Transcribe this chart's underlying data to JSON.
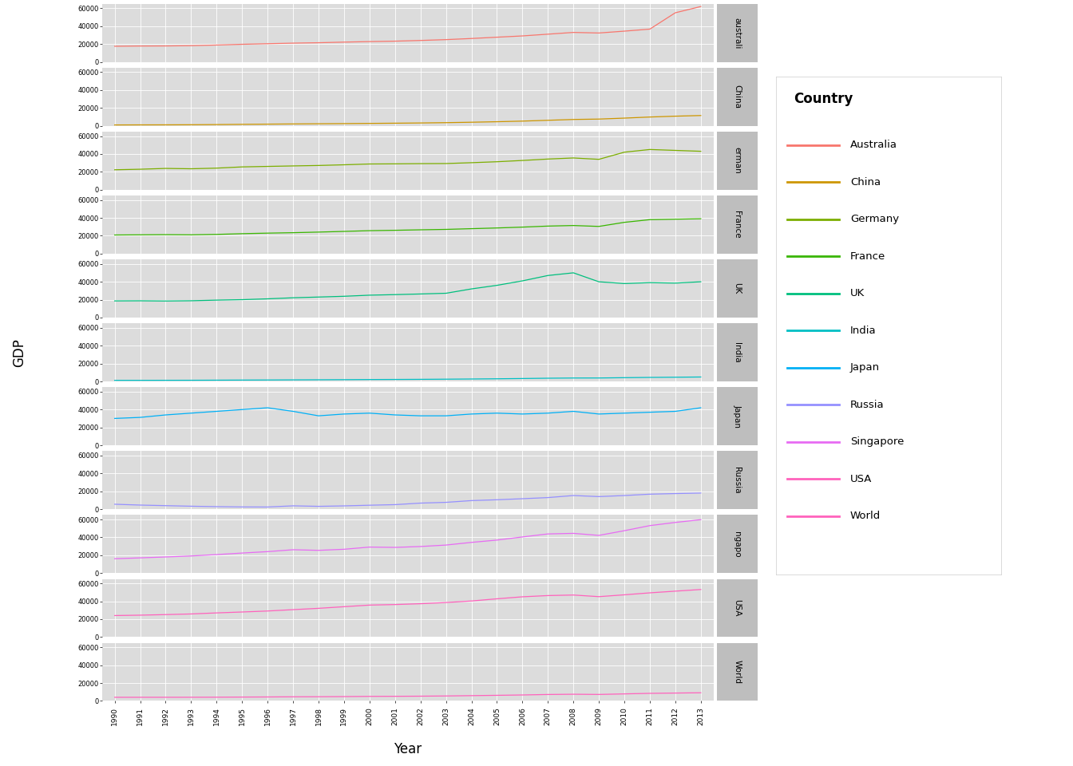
{
  "countries": [
    "Australia",
    "China",
    "Germany",
    "France",
    "UK",
    "India",
    "Japan",
    "Russia",
    "Singapore",
    "USA",
    "World"
  ],
  "facet_labels": [
    "australi",
    "China",
    "erman",
    "France",
    "UK",
    "India",
    "Japan",
    "Russia",
    "ngapo",
    "USA",
    "World"
  ],
  "years": [
    1990,
    1991,
    1992,
    1993,
    1994,
    1995,
    1996,
    1997,
    1998,
    1999,
    2000,
    2001,
    2002,
    2003,
    2004,
    2005,
    2006,
    2007,
    2008,
    2009,
    2010,
    2011,
    2012,
    2013
  ],
  "gdp_data": {
    "Australia": [
      17517,
      17788,
      17887,
      18182,
      18894,
      19721,
      20389,
      21020,
      21468,
      22167,
      22746,
      23228,
      24021,
      24958,
      26214,
      27655,
      29095,
      31048,
      33009,
      32360,
      34435,
      36713,
      55000,
      62000
    ],
    "China": [
      979,
      1056,
      1100,
      1205,
      1394,
      1666,
      1880,
      2093,
      2297,
      2485,
      2700,
      2933,
      3187,
      3532,
      4008,
      4575,
      5272,
      6186,
      7104,
      7546,
      8618,
      9849,
      10785,
      11525
    ],
    "Germany": [
      22317,
      22920,
      23830,
      23448,
      24159,
      25520,
      26078,
      26625,
      27127,
      27889,
      28793,
      28937,
      29180,
      29291,
      30238,
      31304,
      32730,
      34314,
      35537,
      33993,
      42000,
      45000,
      44000,
      43000
    ],
    "France": [
      20838,
      21032,
      21197,
      21019,
      21503,
      22313,
      22906,
      23407,
      24085,
      24855,
      25668,
      26100,
      26636,
      27104,
      27908,
      28700,
      29649,
      30796,
      31438,
      30424,
      35000,
      38000,
      38500,
      39000
    ],
    "UK": [
      18579,
      18698,
      18460,
      18744,
      19461,
      19996,
      20903,
      22072,
      22903,
      23755,
      24993,
      25613,
      26334,
      27131,
      32000,
      36000,
      41000,
      47000,
      50000,
      40000,
      38000,
      39000,
      38500,
      40000
    ],
    "India": [
      1178,
      1200,
      1240,
      1285,
      1393,
      1499,
      1598,
      1725,
      1831,
      1946,
      2095,
      2190,
      2310,
      2487,
      2697,
      2925,
      3230,
      3570,
      3800,
      3830,
      4170,
      4480,
      4680,
      4930
    ],
    "Japan": [
      30065,
      31237,
      34000,
      36000,
      38000,
      40000,
      42000,
      38000,
      33000,
      35000,
      36000,
      34000,
      33000,
      33000,
      35000,
      36000,
      35000,
      36000,
      38000,
      35000,
      36000,
      37000,
      38000,
      42000
    ],
    "Russia": [
      5555,
      4615,
      3985,
      3337,
      2868,
      2527,
      2445,
      3780,
      3200,
      3720,
      4450,
      5100,
      6820,
      7670,
      9630,
      10560,
      11740,
      13000,
      15300,
      14100,
      15300,
      16800,
      17500,
      18100
    ],
    "Singapore": [
      16059,
      17038,
      18082,
      19163,
      20734,
      22433,
      24029,
      26149,
      25461,
      26660,
      29120,
      28760,
      29750,
      31380,
      34360,
      36940,
      40460,
      43820,
      44470,
      42180,
      47450,
      53140,
      56680,
      59797
    ],
    "USA": [
      24000,
      24430,
      25060,
      25780,
      26952,
      27970,
      29080,
      30600,
      32080,
      33890,
      35700,
      36310,
      37240,
      38560,
      40290,
      42740,
      44970,
      46350,
      46970,
      45140,
      47200,
      49400,
      51300,
      53143
    ],
    "World": [
      4030,
      4040,
      4050,
      4080,
      4150,
      4280,
      4400,
      4580,
      4650,
      4810,
      5050,
      5130,
      5270,
      5520,
      5870,
      6230,
      6630,
      7150,
      7440,
      7200,
      7830,
      8450,
      8770,
      9100
    ]
  },
  "colors": {
    "Australia": "#F8766D",
    "China": "#CD9600",
    "Germany": "#7CAE00",
    "France": "#39B600",
    "UK": "#00BF7D",
    "India": "#00BFC4",
    "Japan": "#00B0F6",
    "Russia": "#9590FF",
    "Singapore": "#E76BF3",
    "USA": "#FF62BC",
    "World": "#FF62BC"
  },
  "ylim": [
    0,
    65000
  ],
  "yticks": [
    0,
    20000,
    40000,
    60000
  ],
  "ytick_labels": [
    "0",
    "20000",
    "40000",
    "60000"
  ],
  "panel_background": "#DCDCDC",
  "strip_background": "#BEBEBE",
  "grid_color": "#FFFFFF",
  "title_x": "Year",
  "title_y": "GDP",
  "legend_title": "Country"
}
